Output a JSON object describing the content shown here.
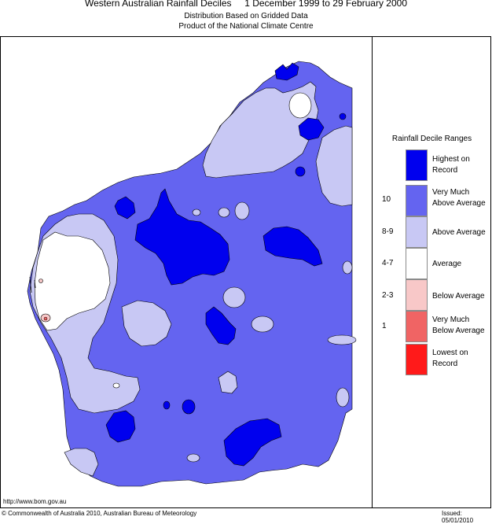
{
  "header": {
    "title": "Western Australian Rainfall Deciles     1 December 1999 to 29 February 2000",
    "subtitle1": "Distribution Based on Gridded Data",
    "subtitle2": "Product of the National Climate Centre"
  },
  "legend": {
    "title": "Rainfall Decile Ranges",
    "items": [
      {
        "range": "",
        "label": "Highest on Record",
        "color": "#0000ee"
      },
      {
        "range": "10",
        "label": "Very Much Above Average",
        "color": "#6464f0"
      },
      {
        "range": "8-9",
        "label": "Above Average",
        "color": "#c8c8f4"
      },
      {
        "range": "4-7",
        "label": "Average",
        "color": "#ffffff"
      },
      {
        "range": "2-3",
        "label": "Below Average",
        "color": "#f8c8c8"
      },
      {
        "range": "1",
        "label": "Very Much Below Average",
        "color": "#f06464"
      },
      {
        "range": "",
        "label": "Lowest on Record",
        "color": "#ff1a1a"
      }
    ]
  },
  "footer": {
    "url": "http://www.bom.gov.au",
    "copyright": "© Commonwealth of Australia 2010, Australian Bureau of Meteorology",
    "issued": "Issued: 05/01/2010"
  }
}
